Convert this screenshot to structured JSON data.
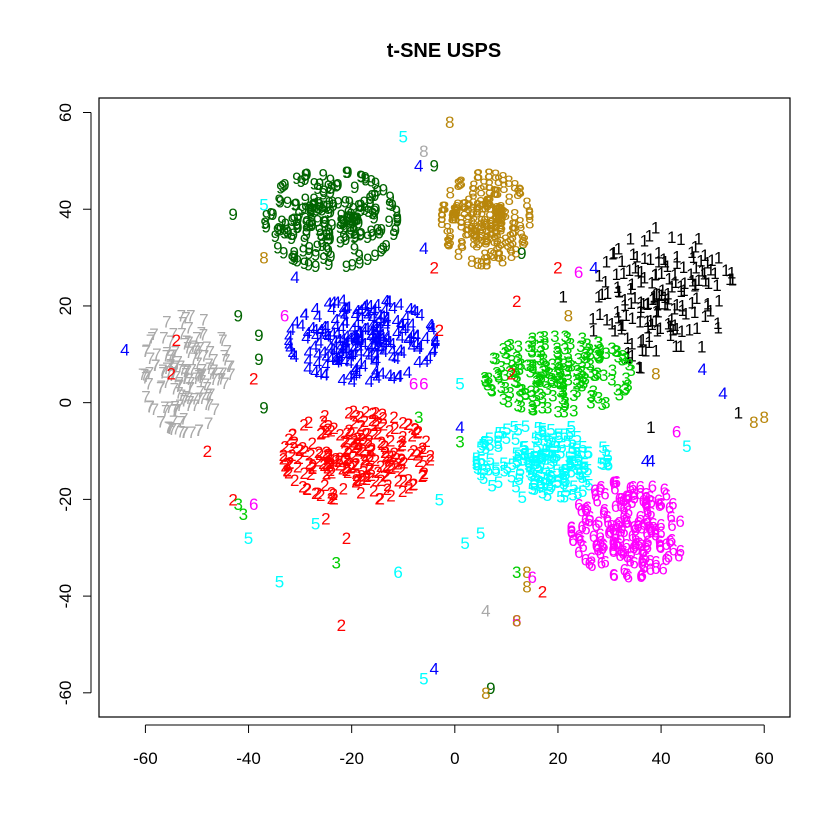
{
  "chart_data": {
    "type": "scatter",
    "title": "t-SNE USPS",
    "xlabel": "",
    "ylabel": "",
    "xlim": [
      -69,
      65
    ],
    "ylim": [
      -65,
      63
    ],
    "x_ticks": [
      -60,
      -40,
      -20,
      0,
      20,
      40,
      60
    ],
    "y_ticks": [
      -60,
      -40,
      -20,
      0,
      20,
      40,
      60
    ],
    "grid": false,
    "marker": "digit label (class number drawn as text)",
    "clusters": [
      {
        "label": "1",
        "color": "#000000",
        "center": [
          40,
          22
        ],
        "spread": [
          9,
          11
        ],
        "rotation_deg": -35,
        "n": 170
      },
      {
        "label": "2",
        "color": "#ff0000",
        "center": [
          -19,
          -11
        ],
        "spread": [
          10,
          6.5
        ],
        "rotation_deg": 0,
        "n": 230
      },
      {
        "label": "3",
        "color": "#00cd00",
        "center": [
          20,
          6
        ],
        "spread": [
          10,
          5.5
        ],
        "rotation_deg": 0,
        "n": 190
      },
      {
        "label": "4",
        "color": "#0000ff",
        "center": [
          -18,
          13
        ],
        "spread": [
          10,
          6
        ],
        "rotation_deg": 0,
        "n": 220
      },
      {
        "label": "5",
        "color": "#00ffff",
        "center": [
          17,
          -12
        ],
        "spread": [
          9,
          5.5
        ],
        "rotation_deg": 0,
        "n": 190
      },
      {
        "label": "6",
        "color": "#ff00ff",
        "center": [
          34,
          -26
        ],
        "spread": [
          8,
          7
        ],
        "rotation_deg": 0,
        "n": 190
      },
      {
        "label": "7",
        "color": "#a9a9a9",
        "center": [
          -52,
          6
        ],
        "spread": [
          6,
          8.5
        ],
        "rotation_deg": 0,
        "n": 160
      },
      {
        "label": "8",
        "color": "#b8860b",
        "center": [
          6,
          38
        ],
        "spread": [
          6,
          6.5
        ],
        "rotation_deg": 0,
        "n": 170
      },
      {
        "label": "9",
        "color": "#006400",
        "center": [
          -24,
          38
        ],
        "spread": [
          9,
          7
        ],
        "rotation_deg": 0,
        "n": 200
      }
    ],
    "outliers": [
      {
        "label": "4",
        "color": "#0000ff",
        "x": -64,
        "y": 11
      },
      {
        "label": "2",
        "color": "#ff0000",
        "x": -54,
        "y": 13
      },
      {
        "label": "2",
        "color": "#ff0000",
        "x": -55,
        "y": 6
      },
      {
        "label": "9",
        "color": "#006400",
        "x": -42,
        "y": 18
      },
      {
        "label": "9",
        "color": "#006400",
        "x": -38,
        "y": 14
      },
      {
        "label": "9",
        "color": "#006400",
        "x": -38,
        "y": 9
      },
      {
        "label": "9",
        "color": "#006400",
        "x": -37,
        "y": -1
      },
      {
        "label": "9",
        "color": "#006400",
        "x": -43,
        "y": 39
      },
      {
        "label": "2",
        "color": "#ff0000",
        "x": -39,
        "y": 5
      },
      {
        "label": "2",
        "color": "#ff0000",
        "x": -48,
        "y": -10
      },
      {
        "label": "6",
        "color": "#ff00ff",
        "x": -33,
        "y": 18
      },
      {
        "label": "4",
        "color": "#0000ff",
        "x": -31,
        "y": 26
      },
      {
        "label": "3",
        "color": "#00cd00",
        "x": -42,
        "y": -21
      },
      {
        "label": "3",
        "color": "#00cd00",
        "x": -41,
        "y": -23
      },
      {
        "label": "2",
        "color": "#ff0000",
        "x": -43,
        "y": -20
      },
      {
        "label": "6",
        "color": "#ff00ff",
        "x": -39,
        "y": -21
      },
      {
        "label": "5",
        "color": "#00ffff",
        "x": -40,
        "y": -28
      },
      {
        "label": "5",
        "color": "#00ffff",
        "x": -34,
        "y": -37
      },
      {
        "label": "5",
        "color": "#00ffff",
        "x": -27,
        "y": -25
      },
      {
        "label": "2",
        "color": "#ff0000",
        "x": -25,
        "y": -24
      },
      {
        "label": "2",
        "color": "#ff0000",
        "x": -21,
        "y": -28
      },
      {
        "label": "3",
        "color": "#00cd00",
        "x": -23,
        "y": -33
      },
      {
        "label": "6",
        "color": "#00ffff",
        "x": -11,
        "y": -35
      },
      {
        "label": "2",
        "color": "#ff0000",
        "x": -22,
        "y": -46
      },
      {
        "label": "5",
        "color": "#00ffff",
        "x": -6,
        "y": -57
      },
      {
        "label": "4",
        "color": "#0000ff",
        "x": -4,
        "y": -55
      },
      {
        "label": "9",
        "color": "#006400",
        "x": 7,
        "y": -59
      },
      {
        "label": "8",
        "color": "#b8860b",
        "x": 6,
        "y": -60
      },
      {
        "label": "4",
        "color": "#a9a9a9",
        "x": 6,
        "y": -43
      },
      {
        "label": "6",
        "color": "#ff00ff",
        "x": 12,
        "y": -45
      },
      {
        "label": "8",
        "color": "#b8860b",
        "x": 12,
        "y": -45
      },
      {
        "label": "3",
        "color": "#00cd00",
        "x": 12,
        "y": -35
      },
      {
        "label": "8",
        "color": "#b8860b",
        "x": 14,
        "y": -35
      },
      {
        "label": "8",
        "color": "#b8860b",
        "x": 14,
        "y": -38
      },
      {
        "label": "2",
        "color": "#ff0000",
        "x": 17,
        "y": -39
      },
      {
        "label": "6",
        "color": "#ff00ff",
        "x": 15,
        "y": -36
      },
      {
        "label": "5",
        "color": "#00ffff",
        "x": 2,
        "y": -29
      },
      {
        "label": "5",
        "color": "#00ffff",
        "x": 5,
        "y": -27
      },
      {
        "label": "5",
        "color": "#00ffff",
        "x": -3,
        "y": -20
      },
      {
        "label": "6",
        "color": "#ff00ff",
        "x": -8,
        "y": 4
      },
      {
        "label": "6",
        "color": "#ff00ff",
        "x": -6,
        "y": 4
      },
      {
        "label": "4",
        "color": "#0000ff",
        "x": 1,
        "y": -5
      },
      {
        "label": "3",
        "color": "#00cd00",
        "x": 1,
        "y": -8
      },
      {
        "label": "3",
        "color": "#00cd00",
        "x": -7,
        "y": -3
      },
      {
        "label": "2",
        "color": "#ff0000",
        "x": -3,
        "y": 15
      },
      {
        "label": "5",
        "color": "#00ffff",
        "x": 1,
        "y": 4
      },
      {
        "label": "5",
        "color": "#00ffff",
        "x": -10,
        "y": 55
      },
      {
        "label": "8",
        "color": "#a9a9a9",
        "x": -6,
        "y": 52
      },
      {
        "label": "8",
        "color": "#b8860b",
        "x": -1,
        "y": 58
      },
      {
        "label": "9",
        "color": "#006400",
        "x": -4,
        "y": 49
      },
      {
        "label": "4",
        "color": "#0000ff",
        "x": -7,
        "y": 49
      },
      {
        "label": "5",
        "color": "#00ffff",
        "x": -37,
        "y": 41
      },
      {
        "label": "8",
        "color": "#b8860b",
        "x": -37,
        "y": 30
      },
      {
        "label": "2",
        "color": "#ff0000",
        "x": -4,
        "y": 28
      },
      {
        "label": "4",
        "color": "#0000ff",
        "x": -6,
        "y": 32
      },
      {
        "label": "9",
        "color": "#006400",
        "x": 13,
        "y": 31
      },
      {
        "label": "2",
        "color": "#ff0000",
        "x": 20,
        "y": 28
      },
      {
        "label": "4",
        "color": "#0000ff",
        "x": 27,
        "y": 28
      },
      {
        "label": "6",
        "color": "#ff00ff",
        "x": 24,
        "y": 27
      },
      {
        "label": "2",
        "color": "#ff0000",
        "x": 12,
        "y": 21
      },
      {
        "label": "1",
        "color": "#000000",
        "x": 21,
        "y": 22
      },
      {
        "label": "8",
        "color": "#b8860b",
        "x": 22,
        "y": 18
      },
      {
        "label": "1",
        "color": "#000000",
        "x": 38,
        "y": -5
      },
      {
        "label": "4",
        "color": "#0000ff",
        "x": 38,
        "y": -12
      },
      {
        "label": "4",
        "color": "#0000ff",
        "x": 37,
        "y": -12
      },
      {
        "label": "6",
        "color": "#ff00ff",
        "x": 43,
        "y": -6
      },
      {
        "label": "5",
        "color": "#00ffff",
        "x": 45,
        "y": -9
      },
      {
        "label": "8",
        "color": "#b8860b",
        "x": 58,
        "y": -4
      },
      {
        "label": "8",
        "color": "#b8860b",
        "x": 60,
        "y": -3
      },
      {
        "label": "4",
        "color": "#0000ff",
        "x": 48,
        "y": 7
      },
      {
        "label": "4",
        "color": "#0000ff",
        "x": 52,
        "y": 2
      },
      {
        "label": "1",
        "color": "#000000",
        "x": 55,
        "y": -2
      },
      {
        "label": "8",
        "color": "#b8860b",
        "x": 39,
        "y": 6
      },
      {
        "label": "5",
        "color": "#00ffff",
        "x": 17,
        "y": -6
      },
      {
        "label": "2",
        "color": "#ff0000",
        "x": 11,
        "y": 6
      }
    ]
  }
}
